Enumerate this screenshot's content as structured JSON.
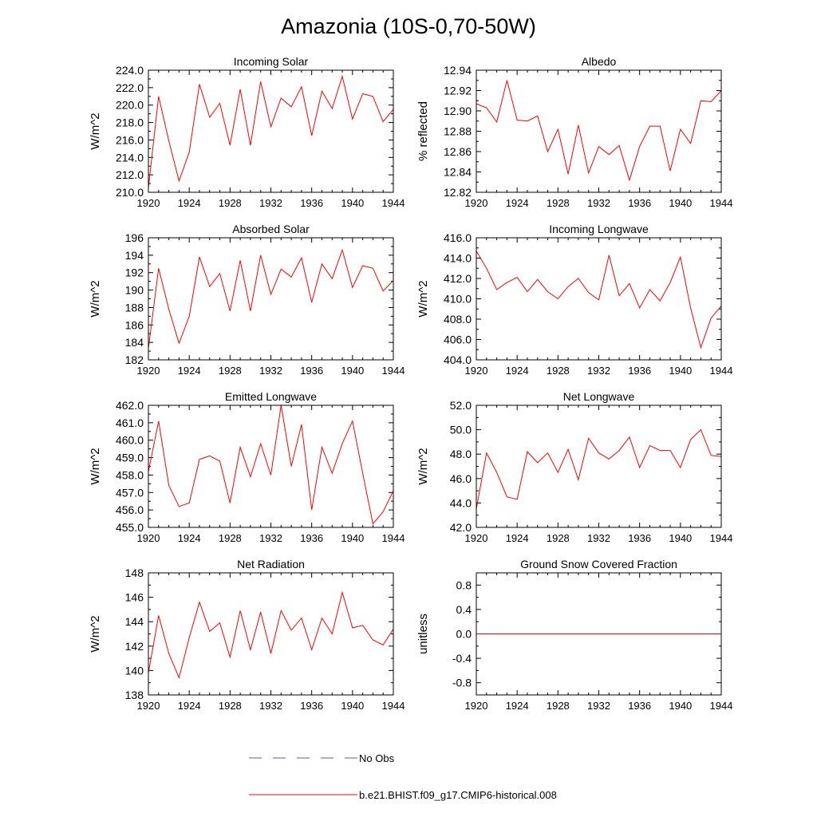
{
  "figure": {
    "title": "Amazonia (10S-0,70-50W)",
    "legend": [
      {
        "label": "No Obs",
        "color": "#4a5fd0",
        "style": "dashed"
      },
      {
        "label": "b.e21.BHIST.f09_g17.CMIP6-historical.008",
        "color": "#ff0000",
        "style": "solid"
      }
    ]
  },
  "chart_data": [
    {
      "type": "line",
      "title": "Incoming Solar",
      "ylabel": "W/m^2",
      "xlim": [
        1920,
        1944
      ],
      "ylim": [
        210,
        224
      ],
      "xticks": [
        "1920",
        "1924",
        "1928",
        "1932",
        "1936",
        "1940",
        "1944"
      ],
      "yticks": [
        "210.0",
        "212.0",
        "214.0",
        "216.0",
        "218.0",
        "220.0",
        "222.0",
        "224.0"
      ],
      "x": [
        1920,
        1921,
        1922,
        1923,
        1924,
        1925,
        1926,
        1927,
        1928,
        1929,
        1930,
        1931,
        1932,
        1933,
        1934,
        1935,
        1936,
        1937,
        1938,
        1939,
        1940,
        1941,
        1942,
        1943,
        1944
      ],
      "series": [
        {
          "name": "b.e21.BHIST.f09_g17.CMIP6-historical.008",
          "color": "#ff0000",
          "values": [
            210.5,
            221.0,
            215.9,
            211.3,
            214.6,
            222.4,
            218.6,
            220.2,
            215.4,
            221.8,
            215.4,
            222.7,
            217.5,
            220.8,
            219.8,
            222.1,
            216.5,
            221.6,
            219.6,
            223.3,
            218.4,
            221.3,
            221.0,
            218.1,
            219.5
          ]
        }
      ]
    },
    {
      "type": "line",
      "title": "Albedo",
      "ylabel": "% reflected",
      "xlim": [
        1920,
        1944
      ],
      "ylim": [
        12.82,
        12.94
      ],
      "xticks": [
        "1920",
        "1924",
        "1928",
        "1932",
        "1936",
        "1940",
        "1944"
      ],
      "yticks": [
        "12.82",
        "12.84",
        "12.86",
        "12.88",
        "12.90",
        "12.92",
        "12.94"
      ],
      "x": [
        1920,
        1921,
        1922,
        1923,
        1924,
        1925,
        1926,
        1927,
        1928,
        1929,
        1930,
        1931,
        1932,
        1933,
        1934,
        1935,
        1936,
        1937,
        1938,
        1939,
        1940,
        1941,
        1942,
        1943,
        1944
      ],
      "series": [
        {
          "name": "b.e21.BHIST.f09_g17.CMIP6-historical.008",
          "color": "#ff0000",
          "values": [
            12.907,
            12.903,
            12.889,
            12.93,
            12.891,
            12.89,
            12.895,
            12.86,
            12.882,
            12.838,
            12.886,
            12.839,
            12.865,
            12.857,
            12.866,
            12.832,
            12.865,
            12.885,
            12.885,
            12.841,
            12.882,
            12.868,
            12.91,
            12.909,
            12.92
          ]
        }
      ]
    },
    {
      "type": "line",
      "title": "Absorbed Solar",
      "ylabel": "W/m^2",
      "xlim": [
        1920,
        1944
      ],
      "ylim": [
        182,
        196
      ],
      "xticks": [
        "1920",
        "1924",
        "1928",
        "1932",
        "1936",
        "1940",
        "1944"
      ],
      "yticks": [
        "182",
        "184",
        "186",
        "188",
        "190",
        "192",
        "194",
        "196"
      ],
      "x": [
        1920,
        1921,
        1922,
        1923,
        1924,
        1925,
        1926,
        1927,
        1928,
        1929,
        1930,
        1931,
        1932,
        1933,
        1934,
        1935,
        1936,
        1937,
        1938,
        1939,
        1940,
        1941,
        1942,
        1943,
        1944
      ],
      "series": [
        {
          "name": "b.e21.BHIST.f09_g17.CMIP6-historical.008",
          "color": "#ff0000",
          "values": [
            183.3,
            192.5,
            187.8,
            183.9,
            187.0,
            193.8,
            190.4,
            191.9,
            187.6,
            193.4,
            187.6,
            194.0,
            189.5,
            192.4,
            191.5,
            193.7,
            188.6,
            193.0,
            191.3,
            194.6,
            190.3,
            192.8,
            192.5,
            189.9,
            191.1
          ]
        }
      ]
    },
    {
      "type": "line",
      "title": "Incoming Longwave",
      "ylabel": "W/m^2",
      "xlim": [
        1920,
        1944
      ],
      "ylim": [
        404,
        416
      ],
      "xticks": [
        "1920",
        "1924",
        "1928",
        "1932",
        "1936",
        "1940",
        "1944"
      ],
      "yticks": [
        "404.0",
        "406.0",
        "408.0",
        "410.0",
        "412.0",
        "414.0",
        "416.0"
      ],
      "x": [
        1920,
        1921,
        1922,
        1923,
        1924,
        1925,
        1926,
        1927,
        1928,
        1929,
        1930,
        1931,
        1932,
        1933,
        1934,
        1935,
        1936,
        1937,
        1938,
        1939,
        1940,
        1941,
        1942,
        1943,
        1944
      ],
      "series": [
        {
          "name": "b.e21.BHIST.f09_g17.CMIP6-historical.008",
          "color": "#ff0000",
          "values": [
            414.7,
            413.0,
            410.9,
            411.6,
            412.1,
            410.7,
            411.9,
            410.7,
            410.0,
            411.2,
            412.0,
            410.6,
            409.9,
            414.3,
            410.3,
            411.5,
            409.1,
            410.9,
            409.8,
            411.6,
            414.1,
            409.1,
            405.2,
            408.1,
            409.3
          ]
        }
      ]
    },
    {
      "type": "line",
      "title": "Emitted Longwave",
      "ylabel": "W/m^2",
      "xlim": [
        1920,
        1944
      ],
      "ylim": [
        455,
        462
      ],
      "xticks": [
        "1920",
        "1924",
        "1928",
        "1932",
        "1936",
        "1940",
        "1944"
      ],
      "yticks": [
        "455.0",
        "456.0",
        "457.0",
        "458.0",
        "459.0",
        "460.0",
        "461.0",
        "462.0"
      ],
      "x": [
        1920,
        1921,
        1922,
        1923,
        1924,
        1925,
        1926,
        1927,
        1928,
        1929,
        1930,
        1931,
        1932,
        1933,
        1934,
        1935,
        1936,
        1937,
        1938,
        1939,
        1940,
        1941,
        1942,
        1943,
        1944
      ],
      "series": [
        {
          "name": "b.e21.BHIST.f09_g17.CMIP6-historical.008",
          "color": "#ff0000",
          "values": [
            458.2,
            461.1,
            457.4,
            456.2,
            456.4,
            458.9,
            459.1,
            458.8,
            456.4,
            459.6,
            457.9,
            459.8,
            458.0,
            462.0,
            458.5,
            460.9,
            456.0,
            459.6,
            458.1,
            459.8,
            461.1,
            458.1,
            455.2,
            455.9,
            457.1
          ]
        }
      ]
    },
    {
      "type": "line",
      "title": "Net Longwave",
      "ylabel": "W/m^2",
      "xlim": [
        1920,
        1944
      ],
      "ylim": [
        42,
        52
      ],
      "xticks": [
        "1920",
        "1924",
        "1928",
        "1932",
        "1936",
        "1940",
        "1944"
      ],
      "yticks": [
        "42.0",
        "44.0",
        "46.0",
        "48.0",
        "50.0",
        "52.0"
      ],
      "x": [
        1920,
        1921,
        1922,
        1923,
        1924,
        1925,
        1926,
        1927,
        1928,
        1929,
        1930,
        1931,
        1932,
        1933,
        1934,
        1935,
        1936,
        1937,
        1938,
        1939,
        1940,
        1941,
        1942,
        1943,
        1944
      ],
      "series": [
        {
          "name": "b.e21.BHIST.f09_g17.CMIP6-historical.008",
          "color": "#ff0000",
          "values": [
            43.5,
            48.1,
            46.5,
            44.5,
            44.3,
            48.2,
            47.3,
            48.1,
            46.5,
            48.4,
            45.9,
            49.3,
            48.1,
            47.6,
            48.3,
            49.4,
            46.9,
            48.7,
            48.3,
            48.3,
            46.9,
            49.2,
            50.0,
            47.9,
            47.8
          ]
        }
      ]
    },
    {
      "type": "line",
      "title": "Net Radiation",
      "ylabel": "W/m^2",
      "xlim": [
        1920,
        1944
      ],
      "ylim": [
        138,
        148
      ],
      "xticks": [
        "1920",
        "1924",
        "1928",
        "1932",
        "1936",
        "1940",
        "1944"
      ],
      "yticks": [
        "138",
        "140",
        "142",
        "144",
        "146",
        "148"
      ],
      "x": [
        1920,
        1921,
        1922,
        1923,
        1924,
        1925,
        1926,
        1927,
        1928,
        1929,
        1930,
        1931,
        1932,
        1933,
        1934,
        1935,
        1936,
        1937,
        1938,
        1939,
        1940,
        1941,
        1942,
        1943,
        1944
      ],
      "series": [
        {
          "name": "b.e21.BHIST.f09_g17.CMIP6-historical.008",
          "color": "#ff0000",
          "values": [
            139.8,
            144.5,
            141.4,
            139.4,
            142.7,
            145.6,
            143.2,
            143.9,
            141.1,
            144.9,
            141.7,
            144.8,
            141.4,
            144.9,
            143.3,
            144.3,
            141.7,
            144.3,
            143.0,
            146.4,
            143.5,
            143.7,
            142.5,
            142.1,
            143.4
          ]
        }
      ]
    },
    {
      "type": "line",
      "title": "Ground Snow Covered Fraction",
      "ylabel": "unitless",
      "xlim": [
        1920,
        1944
      ],
      "ylim": [
        -1.0,
        1.0
      ],
      "xticks": [
        "1920",
        "1924",
        "1928",
        "1932",
        "1936",
        "1940",
        "1944"
      ],
      "yticks": [
        "-0.8",
        "-0.4",
        "0.0",
        "0.4",
        "0.8"
      ],
      "x": [
        1920,
        1921,
        1922,
        1923,
        1924,
        1925,
        1926,
        1927,
        1928,
        1929,
        1930,
        1931,
        1932,
        1933,
        1934,
        1935,
        1936,
        1937,
        1938,
        1939,
        1940,
        1941,
        1942,
        1943,
        1944
      ],
      "series": [
        {
          "name": "b.e21.BHIST.f09_g17.CMIP6-historical.008",
          "color": "#ff0000",
          "values": [
            0,
            0,
            0,
            0,
            0,
            0,
            0,
            0,
            0,
            0,
            0,
            0,
            0,
            0,
            0,
            0,
            0,
            0,
            0,
            0,
            0,
            0,
            0,
            0,
            0
          ]
        }
      ]
    }
  ]
}
